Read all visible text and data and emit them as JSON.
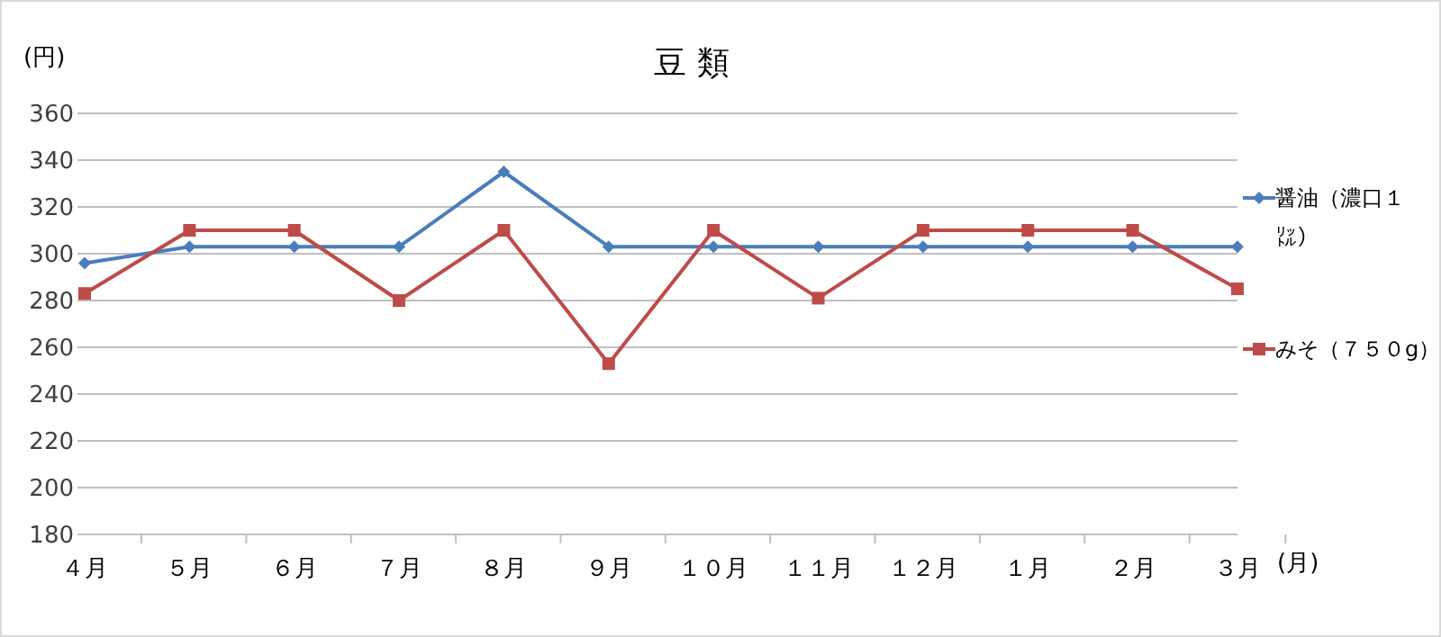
{
  "chart_data": {
    "type": "line",
    "title": "豆 類",
    "xlabel": "(月)",
    "ylabel": "(円)",
    "categories": [
      "４月",
      "５月",
      "６月",
      "７月",
      "８月",
      "９月",
      "１０月",
      "１１月",
      "１２月",
      "１月",
      "２月",
      "３月"
    ],
    "series": [
      {
        "name": "醤油（濃口１㍑）",
        "color": "#4a7ebb",
        "marker": "diamond",
        "values": [
          296,
          303,
          303,
          303,
          335,
          303,
          303,
          303,
          303,
          303,
          303,
          303
        ]
      },
      {
        "name": "みそ（７５０g）",
        "color": "#be4b48",
        "marker": "square",
        "values": [
          283,
          310,
          310,
          280,
          310,
          253,
          310,
          281,
          310,
          310,
          310,
          285
        ]
      }
    ],
    "ylim": [
      180,
      360
    ],
    "yticks": [
      180,
      200,
      220,
      240,
      260,
      280,
      300,
      320,
      340,
      360
    ],
    "grid": "y",
    "legend": "right"
  }
}
